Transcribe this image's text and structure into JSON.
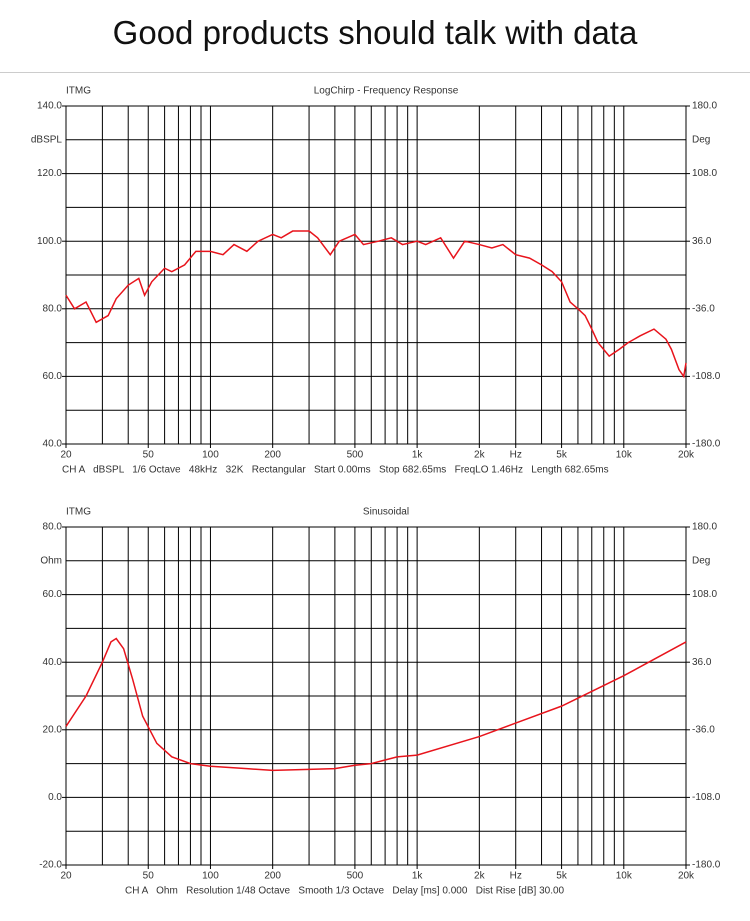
{
  "header": {
    "title": "Good products should talk with data"
  },
  "chart_data": [
    {
      "type": "line",
      "corner_label": "ITMG",
      "title": "LogChirp - Frequency Response",
      "ylabel": "dBSPL",
      "y2label": "Deg",
      "footer": "CH A   dBSPL   1/6 Octave   48kHz   32K   Rectangular   Start 0.00ms   Stop 682.65ms   FreqLO 1.46Hz   Length 682.65ms",
      "log_x": true,
      "grid": true,
      "xlim": [
        20,
        20000
      ],
      "xticks": [
        20,
        50,
        100,
        200,
        500,
        {
          "value": 1000,
          "label": "1k"
        },
        {
          "value": 2000,
          "label": "2k"
        },
        {
          "value": 3000,
          "label": "Hz"
        },
        {
          "value": 5000,
          "label": "5k"
        },
        {
          "value": 10000,
          "label": "10k"
        },
        {
          "value": 20000,
          "label": "20k"
        }
      ],
      "xgrid": [
        20,
        30,
        40,
        50,
        60,
        70,
        80,
        90,
        100,
        200,
        300,
        400,
        500,
        600,
        700,
        800,
        900,
        1000,
        2000,
        3000,
        4000,
        5000,
        6000,
        7000,
        8000,
        9000,
        10000,
        20000
      ],
      "ylim": [
        40,
        140
      ],
      "yticks": [
        {
          "value": 140,
          "label": "140.0"
        },
        {
          "value": 120,
          "label": "120.0"
        },
        {
          "value": 100,
          "label": "100.0"
        },
        {
          "value": 80,
          "label": "80.0"
        },
        {
          "value": 60,
          "label": "60.0"
        },
        {
          "value": 40,
          "label": "40.0"
        }
      ],
      "ygrid": [
        140,
        130,
        120,
        110,
        100,
        90,
        80,
        70,
        60,
        50,
        40
      ],
      "y2lim": [
        -180,
        180
      ],
      "y2ticks": [
        {
          "value": 180,
          "label": "180.0"
        },
        {
          "value": 108,
          "label": "108.0"
        },
        {
          "value": 36,
          "label": "36.0"
        },
        {
          "value": -36,
          "label": "-36.0"
        },
        {
          "value": -108,
          "label": "-108.0"
        },
        {
          "value": -180,
          "label": "-180.0"
        }
      ],
      "x": [
        20,
        22,
        25,
        28,
        32,
        35,
        40,
        45,
        48,
        52,
        60,
        65,
        75,
        85,
        100,
        115,
        130,
        150,
        170,
        200,
        220,
        250,
        300,
        330,
        380,
        420,
        500,
        550,
        650,
        750,
        850,
        1000,
        1100,
        1300,
        1500,
        1700,
        2000,
        2300,
        2600,
        3000,
        3500,
        4000,
        4500,
        5000,
        5500,
        6000,
        6500,
        7000,
        7500,
        8500,
        9500,
        10500,
        12000,
        14000,
        16000,
        17000,
        18500,
        19500,
        20000
      ],
      "series": [
        {
          "color": "#e8141c",
          "values": [
            84,
            80,
            82,
            76,
            78,
            83,
            87,
            89,
            84,
            88,
            92,
            91,
            93,
            97,
            97,
            96,
            99,
            97,
            100,
            102,
            101,
            103,
            103,
            101,
            96,
            100,
            102,
            99,
            100,
            101,
            99,
            100,
            99,
            101,
            95,
            100,
            99,
            98,
            99,
            96,
            95,
            93,
            91,
            88,
            82,
            80,
            78,
            74,
            70,
            66,
            68,
            70,
            72,
            74,
            71,
            68,
            62,
            60,
            64
          ]
        }
      ]
    },
    {
      "type": "line",
      "corner_label": "ITMG",
      "title": "Sinusoidal",
      "ylabel": "Ohm",
      "y2label": "Deg",
      "footer": "CH A   Ohm   Resolution 1/48 Octave   Smooth 1/3 Octave   Delay [ms] 0.000   Dist Rise [dB] 30.00",
      "log_x": true,
      "grid": true,
      "xlim": [
        20,
        20000
      ],
      "xticks": [
        20,
        50,
        100,
        200,
        500,
        {
          "value": 1000,
          "label": "1k"
        },
        {
          "value": 2000,
          "label": "2k"
        },
        {
          "value": 3000,
          "label": "Hz"
        },
        {
          "value": 5000,
          "label": "5k"
        },
        {
          "value": 10000,
          "label": "10k"
        },
        {
          "value": 20000,
          "label": "20k"
        }
      ],
      "xgrid": [
        20,
        30,
        40,
        50,
        60,
        70,
        80,
        90,
        100,
        200,
        300,
        400,
        500,
        600,
        700,
        800,
        900,
        1000,
        2000,
        3000,
        4000,
        5000,
        6000,
        7000,
        8000,
        9000,
        10000,
        20000
      ],
      "ylim": [
        -20,
        80
      ],
      "yticks": [
        {
          "value": 80,
          "label": "80.0"
        },
        {
          "value": 60,
          "label": "60.0"
        },
        {
          "value": 40,
          "label": "40.0"
        },
        {
          "value": 20,
          "label": "20.0"
        },
        {
          "value": 0,
          "label": "0.0"
        },
        {
          "value": -20,
          "label": "-20.0"
        }
      ],
      "ygrid": [
        80,
        70,
        60,
        50,
        40,
        30,
        20,
        10,
        0,
        -10,
        -20
      ],
      "y2lim": [
        -180,
        180
      ],
      "y2ticks": [
        {
          "value": 180,
          "label": "180.0"
        },
        {
          "value": 108,
          "label": "108.0"
        },
        {
          "value": 36,
          "label": "36.0"
        },
        {
          "value": -36,
          "label": "-36.0"
        },
        {
          "value": -108,
          "label": "-108.0"
        },
        {
          "value": -180,
          "label": "-180.0"
        }
      ],
      "x": [
        20,
        25,
        30,
        33,
        35,
        38,
        42,
        47,
        55,
        65,
        80,
        100,
        150,
        200,
        300,
        400,
        500,
        600,
        800,
        1000,
        2000,
        3000,
        5000,
        10000,
        20000
      ],
      "series": [
        {
          "color": "#e8141c",
          "values": [
            21,
            30,
            40,
            46,
            47,
            44,
            35,
            24,
            16,
            12,
            10,
            9.2,
            8.5,
            8,
            8.3,
            8.5,
            9.5,
            10,
            12,
            12.5,
            18,
            22,
            27,
            36,
            46
          ]
        }
      ]
    }
  ]
}
